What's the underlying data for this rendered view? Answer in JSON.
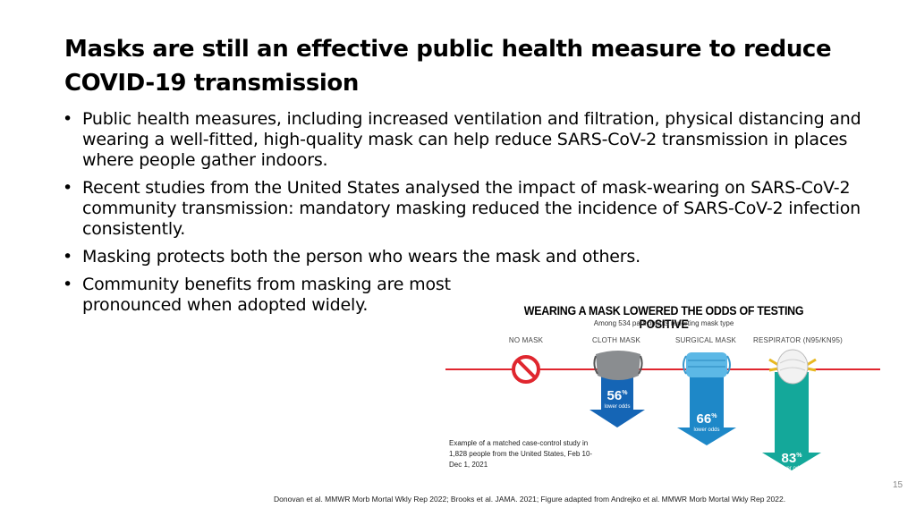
{
  "slide": {
    "title": "Masks are still an effective public health measure to reduce COVID-19 transmission",
    "bullets": [
      "Public health measures, including increased ventilation and filtration, physical distancing and wearing a well-fitted, high-quality mask can help reduce SARS-CoV-2 transmission in places where people gather indoors.",
      "Recent studies from the United States analysed the impact of mask-wearing on SARS-CoV-2 community transmission: mandatory masking reduced the incidence of SARS-CoV-2 infection consistently.",
      "Masking protects both the person who wears the mask and others.",
      "Community benefits from masking are most pronounced when adopted widely."
    ],
    "bullet_symbol": "•",
    "footer": "Donovan et al. MMWR Morb Mortal Wkly Rep 2022; Brooks et al. JAMA. 2021; Figure adapted from Andrejko et al. MMWR Morb Mortal Wkly Rep 2022.",
    "page_number": "15"
  },
  "infographic": {
    "title": "WEARING A MASK LOWERED THE ODDS OF TESTING POSITIVE",
    "subtitle": "Among 534 participants reporting mask type",
    "columns": [
      {
        "label": "NO MASK",
        "reduction": null
      },
      {
        "label": "CLOTH MASK",
        "reduction": "56",
        "color": "#1565b5"
      },
      {
        "label": "SURGICAL MASK",
        "reduction": "66",
        "color": "#1e88c8"
      },
      {
        "label": "RESPIRATOR (N95/KN95)",
        "reduction": "83",
        "color": "#14a89a"
      }
    ],
    "percent_sign": "%",
    "odds_label": "lower odds",
    "note": "Example of a matched case-control study in 1,828 people from the United States, Feb 10-Dec 1, 2021",
    "line_color": "#e0262e"
  }
}
